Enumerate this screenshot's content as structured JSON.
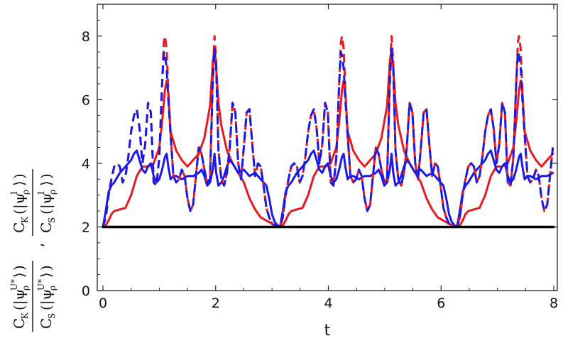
{
  "chart_data": {
    "type": "line",
    "xlabel": "t",
    "ylabel_parts": {
      "first": {
        "num_main": "C",
        "num_sub": "K",
        "den_main": "C",
        "den_sub": "S",
        "state": "|ψ",
        "state_sub": "ρ",
        "state_sup": "U*"
      },
      "separator": ",",
      "second": {
        "num_main": "C",
        "num_sub": "K",
        "den_main": "C",
        "den_sub": "S",
        "state": "|ψ",
        "state_sub": "ρ",
        "state_sup": "I"
      }
    },
    "xlim": [
      0,
      8
    ],
    "ylim": [
      0,
      9
    ],
    "xticks": [
      0,
      2,
      4,
      6,
      8
    ],
    "yticks": [
      0,
      2,
      4,
      6,
      8
    ],
    "period": 3.14159,
    "series": [
      {
        "style": "solid",
        "color": "#000000",
        "width": 3.5,
        "x": [
          0,
          8
        ],
        "y": [
          2,
          2
        ]
      },
      {
        "style": "solid",
        "color": "#e8191f",
        "width": 3,
        "x": [
          0,
          0.05,
          0.1,
          0.15,
          0.2,
          0.3,
          0.4,
          0.5,
          0.6,
          0.7,
          0.8,
          0.9,
          1.0,
          1.05,
          1.1,
          1.13,
          1.16,
          1.2,
          1.3,
          1.4,
          1.5,
          1.6,
          1.7,
          1.8,
          1.9,
          1.95,
          1.98,
          2.01,
          2.05,
          2.1,
          2.2,
          2.3,
          2.4,
          2.5,
          2.6,
          2.7,
          2.8,
          2.9,
          3.0,
          3.05,
          3.1,
          3.14
        ],
        "y": [
          2,
          2.05,
          2.2,
          2.4,
          2.5,
          2.55,
          2.6,
          3.0,
          3.6,
          3.9,
          3.9,
          4.0,
          4.5,
          5.3,
          6.3,
          6.6,
          6.2,
          5.0,
          4.4,
          4.1,
          3.9,
          4.1,
          4.3,
          4.8,
          5.8,
          7.2,
          7.6,
          7.0,
          5.9,
          5.2,
          4.4,
          4.0,
          3.7,
          3.4,
          2.9,
          2.55,
          2.3,
          2.2,
          2.1,
          2.05,
          2.02,
          2
        ]
      },
      {
        "style": "dashed",
        "color": "#e8191f",
        "width": 3,
        "x": [
          0,
          0.05,
          0.1,
          0.15,
          0.2,
          0.25,
          0.3,
          0.35,
          0.4,
          0.45,
          0.5,
          0.55,
          0.6,
          0.65,
          0.7,
          0.75,
          0.8,
          0.85,
          0.9,
          0.95,
          1.0,
          1.05,
          1.08,
          1.1,
          1.13,
          1.16,
          1.2,
          1.25,
          1.3,
          1.35,
          1.4,
          1.45,
          1.5,
          1.55,
          1.6,
          1.65,
          1.7,
          1.75,
          1.8,
          1.85,
          1.9,
          1.95,
          1.98,
          2.01,
          2.05,
          2.1,
          2.15,
          2.2,
          2.25,
          2.3,
          2.35,
          2.4,
          2.45,
          2.5,
          2.55,
          2.6,
          2.65,
          2.7,
          2.75,
          2.8,
          2.85,
          2.9,
          2.95,
          3.0,
          3.05,
          3.1,
          3.14
        ],
        "y": [
          2,
          2.3,
          3.0,
          3.5,
          3.9,
          4.0,
          3.9,
          3.4,
          3.6,
          4.2,
          5.0,
          5.5,
          5.7,
          5.1,
          4.0,
          4.6,
          5.9,
          5.6,
          3.4,
          3.3,
          4.2,
          6.5,
          7.8,
          8.0,
          7.6,
          6.3,
          4.9,
          3.6,
          3.4,
          3.5,
          3.8,
          3.6,
          2.9,
          2.5,
          2.7,
          3.6,
          4.5,
          4.3,
          3.8,
          3.4,
          3.5,
          6.9,
          8.0,
          7.2,
          4.4,
          3.5,
          3.3,
          3.7,
          4.5,
          5.9,
          5.6,
          4.0,
          3.5,
          4.5,
          5.6,
          5.7,
          4.6,
          3.6,
          4.0,
          3.9,
          3.3,
          2.6,
          2.3,
          2.1,
          2.05,
          2.0,
          2
        ]
      },
      {
        "style": "solid",
        "color": "#1a1ae6",
        "width": 3,
        "x": [
          0,
          0.05,
          0.1,
          0.15,
          0.2,
          0.3,
          0.4,
          0.5,
          0.55,
          0.6,
          0.65,
          0.7,
          0.75,
          0.8,
          0.85,
          0.9,
          0.95,
          1.0,
          1.05,
          1.1,
          1.13,
          1.16,
          1.2,
          1.25,
          1.3,
          1.4,
          1.5,
          1.6,
          1.7,
          1.75,
          1.8,
          1.85,
          1.9,
          1.95,
          1.98,
          2.01,
          2.05,
          2.1,
          2.15,
          2.2,
          2.25,
          2.3,
          2.4,
          2.5,
          2.6,
          2.7,
          2.8,
          2.9,
          2.95,
          3.0,
          3.05,
          3.1,
          3.14
        ],
        "y": [
          2,
          2.5,
          3.1,
          3.3,
          3.4,
          3.7,
          3.9,
          4.1,
          4.3,
          4.4,
          4.1,
          3.8,
          3.7,
          3.9,
          4.0,
          3.6,
          3.4,
          3.5,
          3.8,
          4.2,
          4.3,
          3.9,
          3.5,
          3.6,
          3.6,
          3.5,
          3.6,
          3.6,
          3.7,
          3.8,
          3.6,
          3.3,
          3.4,
          3.8,
          4.3,
          3.7,
          3.3,
          3.4,
          3.6,
          3.9,
          4.1,
          4.0,
          3.7,
          3.8,
          3.6,
          3.7,
          3.5,
          3.3,
          2.9,
          2.4,
          2.15,
          2.05,
          2
        ]
      },
      {
        "style": "dashed",
        "color": "#1a1ae6",
        "width": 3,
        "x": [
          0,
          0.05,
          0.1,
          0.15,
          0.2,
          0.25,
          0.3,
          0.35,
          0.4,
          0.45,
          0.5,
          0.55,
          0.6,
          0.65,
          0.7,
          0.75,
          0.8,
          0.85,
          0.9,
          0.95,
          1.0,
          1.05,
          1.08,
          1.1,
          1.13,
          1.16,
          1.2,
          1.25,
          1.3,
          1.35,
          1.4,
          1.45,
          1.5,
          1.55,
          1.6,
          1.65,
          1.7,
          1.75,
          1.8,
          1.85,
          1.9,
          1.95,
          1.98,
          2.01,
          2.05,
          2.1,
          2.15,
          2.2,
          2.25,
          2.3,
          2.35,
          2.4,
          2.45,
          2.5,
          2.55,
          2.6,
          2.65,
          2.7,
          2.75,
          2.8,
          2.85,
          2.9,
          2.95,
          3.0,
          3.05,
          3.1,
          3.14
        ],
        "y": [
          2,
          2.3,
          3.0,
          3.5,
          3.9,
          4.0,
          3.9,
          3.4,
          3.6,
          4.2,
          5.0,
          5.5,
          5.7,
          5.1,
          4.0,
          4.6,
          5.9,
          5.6,
          3.4,
          3.3,
          4.2,
          6.5,
          7.5,
          7.4,
          7.0,
          6.0,
          4.9,
          3.6,
          3.4,
          3.5,
          3.8,
          3.6,
          2.9,
          2.5,
          2.7,
          3.6,
          4.5,
          4.3,
          3.8,
          3.4,
          3.5,
          6.6,
          7.6,
          7.0,
          4.4,
          3.5,
          3.3,
          3.7,
          4.5,
          5.9,
          5.6,
          4.0,
          3.5,
          4.5,
          5.6,
          5.7,
          4.6,
          3.6,
          4.0,
          3.9,
          3.3,
          2.6,
          2.3,
          2.1,
          2.05,
          2.0,
          2
        ]
      }
    ]
  }
}
